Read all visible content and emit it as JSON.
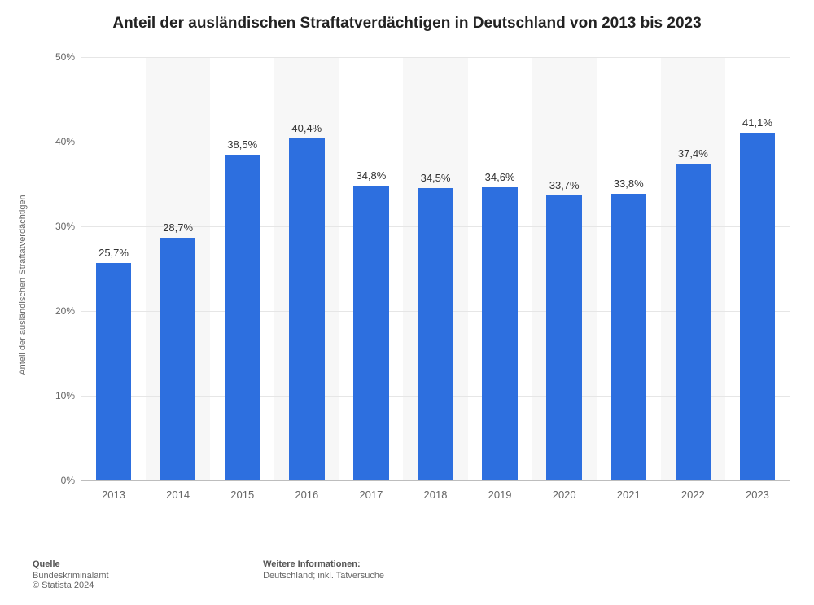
{
  "title": "Anteil der ausländischen Straftatverdächtigen in Deutschland von 2013 bis 2023",
  "chart": {
    "type": "bar",
    "categories": [
      "2013",
      "2014",
      "2015",
      "2016",
      "2017",
      "2018",
      "2019",
      "2020",
      "2021",
      "2022",
      "2023"
    ],
    "values": [
      25.7,
      28.7,
      38.5,
      40.4,
      34.8,
      34.5,
      34.6,
      33.7,
      33.8,
      37.4,
      41.1
    ],
    "value_labels": [
      "25,7%",
      "28,7%",
      "38,5%",
      "40,4%",
      "34,8%",
      "34,5%",
      "34,6%",
      "33,7%",
      "33,8%",
      "37,4%",
      "41,1%"
    ],
    "bar_color": "#2d6fdf",
    "background_color": "#ffffff",
    "band_alt_color": "#f7f7f7",
    "grid_color": "#e6e6e6",
    "axis_color": "#bdbdbd",
    "ylim": [
      0,
      50
    ],
    "yticks": [
      0,
      10,
      20,
      30,
      40,
      50
    ],
    "ytick_labels": [
      "0%",
      "10%",
      "20%",
      "30%",
      "40%",
      "50%"
    ],
    "bar_width_ratio": 0.55,
    "label_fontsize": 13,
    "tick_fontsize": 12,
    "title_fontsize": 19,
    "ylabel": "Anteil der ausländischen Straftatverdächtigen",
    "ylabel_fontsize": 11
  },
  "footer": {
    "source_heading": "Quelle",
    "source_line1": "Bundeskriminalamt",
    "source_line2": "© Statista 2024",
    "info_heading": "Weitere Informationen:",
    "info_line": "Deutschland; inkl. Tatversuche"
  }
}
